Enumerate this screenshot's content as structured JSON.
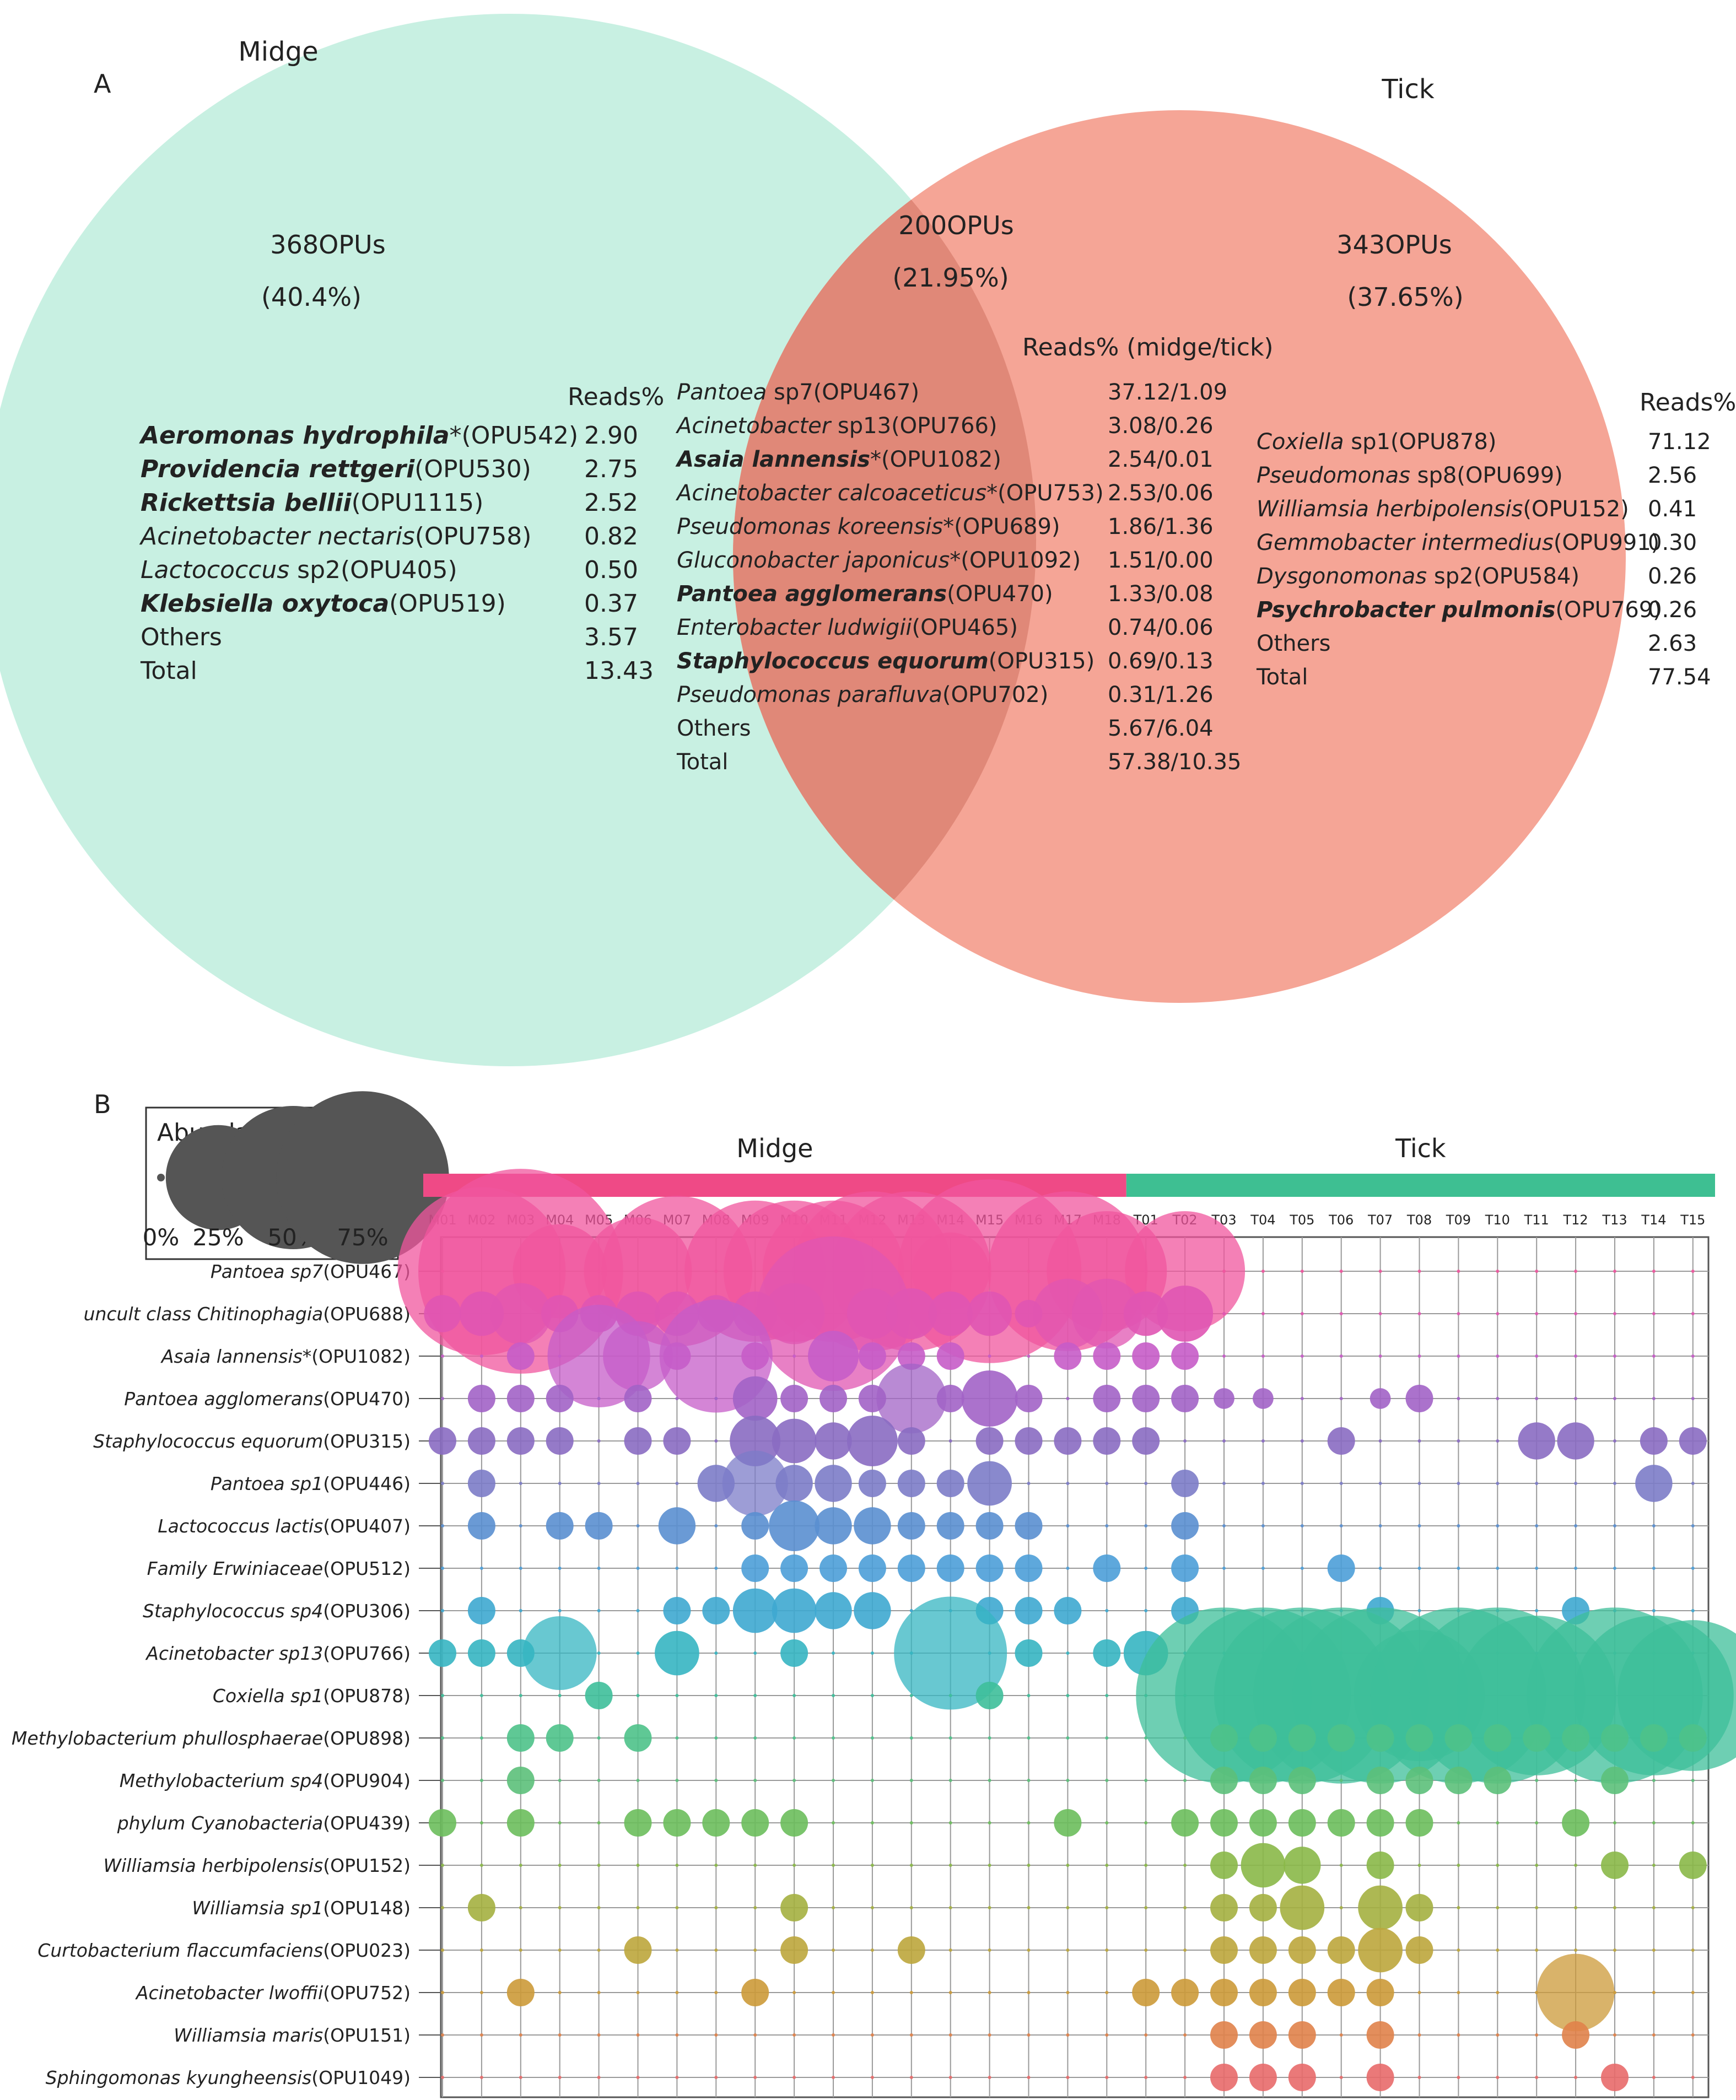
{
  "panelA": {
    "label": "A",
    "midge": {
      "name": "Midge",
      "color": "#c8f0e2",
      "count": "368OPUs",
      "percent": "(40.4%)",
      "reads_header": "Reads%",
      "rows": [
        {
          "name": "Aeromonas hydrophila",
          "bold": true,
          "suffix": "*(OPU542)",
          "value": "2.90"
        },
        {
          "name": "Providencia rettgeri",
          "bold": true,
          "suffix": "(OPU530)",
          "value": "2.75"
        },
        {
          "name": "Rickettsia bellii",
          "bold": true,
          "suffix": "(OPU1115)",
          "value": "2.52"
        },
        {
          "name": "Acinetobacter nectaris",
          "bold": false,
          "suffix": "(OPU758)",
          "value": "0.82"
        },
        {
          "name": "Lactococcus",
          "bold": false,
          "suffix": " sp2(OPU405)",
          "value": "0.50"
        },
        {
          "name": "Klebsiella oxytoca",
          "bold": true,
          "suffix": "(OPU519)",
          "value": "0.37"
        },
        {
          "name": "",
          "bold": false,
          "suffix": "Others",
          "value": "3.57"
        },
        {
          "name": "",
          "bold": false,
          "suffix": "Total",
          "value": "13.43"
        }
      ]
    },
    "shared": {
      "color": "#e08878",
      "count": "200OPUs",
      "percent": "(21.95%)",
      "reads_header": "Reads% (midge/tick)",
      "rows": [
        {
          "name": "Pantoea",
          "bold": false,
          "suffix": " sp7(OPU467)",
          "value": "37.12/1.09"
        },
        {
          "name": "Acinetobacter",
          "bold": false,
          "suffix": " sp13(OPU766)",
          "value": "3.08/0.26"
        },
        {
          "name": "Asaia lannensis",
          "bold": true,
          "suffix": "*(OPU1082)",
          "value": "2.54/0.01"
        },
        {
          "name": "Acinetobacter calcoaceticus",
          "bold": false,
          "suffix": "*(OPU753)",
          "value": "2.53/0.06"
        },
        {
          "name": "Pseudomonas koreensis",
          "bold": false,
          "suffix": "*(OPU689)",
          "value": "1.86/1.36"
        },
        {
          "name": "Gluconobacter japonicus",
          "bold": false,
          "suffix": "*(OPU1092)",
          "value": "1.51/0.00"
        },
        {
          "name": "Pantoea agglomerans",
          "bold": true,
          "suffix": "(OPU470)",
          "value": "1.33/0.08"
        },
        {
          "name": "Enterobacter ludwigii",
          "bold": false,
          "suffix": "(OPU465)",
          "value": "0.74/0.06"
        },
        {
          "name": "Staphylococcus equorum",
          "bold": true,
          "suffix": "(OPU315)",
          "value": "0.69/0.13"
        },
        {
          "name": "Pseudomonas parafluva",
          "bold": false,
          "suffix": "(OPU702)",
          "value": "0.31/1.26"
        },
        {
          "name": "",
          "bold": false,
          "suffix": "Others",
          "value": "5.67/6.04"
        },
        {
          "name": "",
          "bold": false,
          "suffix": "Total",
          "value": "57.38/10.35"
        }
      ]
    },
    "tick": {
      "name": "Tick",
      "color": "#f5a596",
      "count": "343OPUs",
      "percent": "(37.65%)",
      "reads_header": "Reads%",
      "rows": [
        {
          "name": "Coxiella",
          "bold": false,
          "suffix": " sp1(OPU878)",
          "value": "71.12"
        },
        {
          "name": "Pseudomonas",
          "bold": false,
          "suffix": " sp8(OPU699)",
          "value": "2.56"
        },
        {
          "name": "Williamsia herbipolensis",
          "bold": false,
          "suffix": "(OPU152)",
          "value": "0.41"
        },
        {
          "name": "Gemmobacter intermedius",
          "bold": false,
          "suffix": "(OPU991)",
          "value": "0.30"
        },
        {
          "name": "Dysgonomonas",
          "bold": false,
          "suffix": " sp2(OPU584)",
          "value": "0.26"
        },
        {
          "name": "Psychrobacter pulmonis",
          "bold": true,
          "suffix": "(OPU769)",
          "value": "0.26"
        },
        {
          "name": "",
          "bold": false,
          "suffix": "Others",
          "value": "2.63"
        },
        {
          "name": "",
          "bold": false,
          "suffix": "Total",
          "value": "77.54"
        }
      ]
    }
  },
  "panelB": {
    "label": "B",
    "legend": {
      "title": "Abundance",
      "sizes": [
        0,
        25,
        50,
        75
      ],
      "labels": [
        "0%",
        "25%",
        "50%",
        "75%"
      ],
      "color": "#555555"
    },
    "groups": [
      {
        "name": "Midge",
        "color": "#ef4a86"
      },
      {
        "name": "Tick",
        "color": "#3ebf92"
      }
    ]
  },
  "chart_data": {
    "type": "scatter",
    "samples": [
      "M01",
      "M02",
      "M03",
      "M04",
      "M05",
      "M06",
      "M07",
      "M08",
      "M09",
      "M10",
      "M11",
      "M12",
      "M13",
      "M14",
      "M15",
      "M16",
      "M17",
      "M18",
      "T01",
      "T02",
      "T03",
      "T04",
      "T05",
      "T06",
      "T07",
      "T08",
      "T09",
      "T10",
      "T11",
      "T12",
      "T13",
      "T14",
      "T15"
    ],
    "group_of_sample": [
      "Midge",
      "Midge",
      "Midge",
      "Midge",
      "Midge",
      "Midge",
      "Midge",
      "Midge",
      "Midge",
      "Midge",
      "Midge",
      "Midge",
      "Midge",
      "Midge",
      "Midge",
      "Midge",
      "Midge",
      "Midge",
      "Tick",
      "Tick",
      "Tick",
      "Tick",
      "Tick",
      "Tick",
      "Tick",
      "Tick",
      "Tick",
      "Tick",
      "Tick",
      "Tick",
      "Tick",
      "Tick",
      "Tick"
    ],
    "taxa": [
      {
        "name": "Pantoea sp7",
        "suffix": "(OPU467)",
        "color": "#f0559e",
        "values": [
          0,
          50,
          75,
          15,
          0,
          20,
          40,
          0,
          35,
          35,
          35,
          45,
          45,
          10,
          60,
          0,
          45,
          25,
          0,
          25,
          0,
          0,
          0,
          0,
          0,
          0,
          0,
          0,
          0,
          0,
          0,
          0,
          0
        ]
      },
      {
        "name": "uncult class Chitinophagia",
        "suffix": "(OPU688)",
        "color": "#e055b2",
        "values": [
          2,
          3,
          6,
          2,
          2,
          3,
          3,
          2,
          3,
          6,
          42,
          4,
          4,
          3,
          3,
          1,
          8,
          8,
          3,
          5,
          0,
          0,
          0,
          0,
          0,
          0,
          0,
          0,
          0,
          0,
          0,
          0,
          0
        ]
      },
      {
        "name": "Asaia lannensis",
        "suffix": "*(OPU1082)",
        "color": "#c65cc8",
        "values": [
          0,
          0,
          1,
          0,
          18,
          8,
          1,
          22,
          1,
          0,
          4,
          1,
          1,
          1,
          0,
          0,
          1,
          1,
          1,
          1,
          0,
          0,
          0,
          0,
          0,
          0,
          0,
          0,
          0,
          0,
          0,
          0,
          0
        ]
      },
      {
        "name": "Pantoea agglomerans",
        "suffix": "(OPU470)",
        "color": "#a263c6",
        "values": [
          0,
          1,
          1,
          1,
          0,
          1,
          0,
          0,
          3,
          1,
          1,
          1,
          8,
          1,
          5,
          1,
          0,
          1,
          1,
          1,
          0.5,
          0.5,
          0,
          0,
          0.5,
          1,
          0,
          0,
          0,
          0,
          0,
          0,
          0
        ]
      },
      {
        "name": "Staphylococcus equorum",
        "suffix": "(OPU315)",
        "color": "#8a6cc2",
        "values": [
          1,
          1,
          1,
          1,
          0,
          1,
          1,
          0,
          4,
          3,
          2,
          4,
          1,
          0,
          1,
          1,
          1,
          1,
          1,
          0,
          0,
          0,
          0,
          1,
          0,
          0,
          0,
          0,
          2,
          2,
          0,
          1,
          1
        ]
      },
      {
        "name": "Pantoea sp1",
        "suffix": "(OPU446)",
        "color": "#7c7cc8",
        "values": [
          0,
          1,
          0,
          0,
          0,
          0,
          0,
          2,
          7,
          2,
          2,
          1,
          1,
          1,
          3,
          0,
          0,
          0,
          0,
          1,
          0,
          0,
          0,
          0,
          0,
          0,
          0,
          0,
          0,
          0,
          0,
          2,
          0
        ]
      },
      {
        "name": "Lactococcus lactis",
        "suffix": "(OPU407)",
        "color": "#5a8fd0",
        "values": [
          0,
          1,
          0,
          1,
          1,
          0,
          2,
          0,
          1,
          4,
          2,
          2,
          1,
          1,
          1,
          1,
          0,
          0,
          0,
          1,
          0,
          0,
          0,
          0,
          0,
          0,
          0,
          0,
          0,
          0,
          0,
          0,
          0
        ]
      },
      {
        "name": "Family Erwiniaceae",
        "suffix": "(OPU512)",
        "color": "#4c9fd8",
        "values": [
          0,
          0,
          0,
          0,
          0,
          0,
          0,
          0,
          1,
          1,
          1,
          1,
          1,
          1,
          1,
          1,
          0,
          1,
          0,
          1,
          0,
          0,
          0,
          1,
          0,
          0,
          0,
          0,
          0,
          0,
          0,
          0,
          0
        ]
      },
      {
        "name": "Staphylococcus sp4",
        "suffix": "(OPU306)",
        "color": "#3ea8d0",
        "values": [
          0,
          1,
          0,
          0,
          0,
          0,
          1,
          1,
          3,
          3,
          2,
          2,
          0,
          0,
          1,
          1,
          1,
          0,
          0,
          1,
          0,
          0,
          0,
          0,
          1,
          0,
          0,
          0,
          0,
          1,
          0,
          0,
          0
        ]
      },
      {
        "name": "Acinetobacter sp13",
        "suffix": "(OPU766)",
        "color": "#36b5c2",
        "values": [
          1,
          1,
          1,
          9,
          0,
          0,
          3,
          0,
          0,
          1,
          0,
          0,
          0,
          22,
          0,
          1,
          0,
          1,
          3,
          0,
          0,
          0,
          0,
          0,
          0,
          0,
          0,
          0,
          0,
          0,
          0,
          0,
          0
        ]
      },
      {
        "name": "Coxiella sp1",
        "suffix": "(OPU878)",
        "color": "#3ebf9a",
        "values": [
          0,
          0,
          0,
          0,
          1,
          0,
          0,
          0,
          0,
          0,
          0,
          0,
          0,
          0,
          1,
          0,
          0,
          0,
          0,
          0,
          55,
          55,
          55,
          55,
          55,
          30,
          55,
          55,
          45,
          0,
          55,
          45,
          40
        ]
      },
      {
        "name": "Methylobacterium phullosphaerae",
        "suffix": "(OPU898)",
        "color": "#4ec28a",
        "values": [
          0,
          0,
          1,
          1,
          0,
          1,
          0,
          0,
          0,
          0,
          0,
          0,
          0,
          0,
          0,
          0,
          0,
          0,
          0,
          0,
          1,
          1,
          1,
          1,
          1,
          1,
          1,
          1,
          1,
          1,
          1,
          1,
          1
        ]
      },
      {
        "name": "Methylobacterium sp4",
        "suffix": "(OPU904)",
        "color": "#5cc07a",
        "values": [
          0,
          0,
          1,
          0,
          0,
          0,
          0,
          0,
          0,
          0,
          0,
          0,
          0,
          0,
          0,
          0,
          0,
          0,
          0,
          0,
          1,
          1,
          1,
          0,
          1,
          1,
          1,
          1,
          0,
          0,
          1,
          0,
          0
        ]
      },
      {
        "name": "phylum Cyanobacteria",
        "suffix": "(OPU439)",
        "color": "#6cbe5c",
        "values": [
          1,
          0,
          1,
          0,
          0,
          1,
          1,
          1,
          1,
          1,
          0,
          0,
          0,
          0,
          0,
          0,
          1,
          0,
          0,
          1,
          1,
          1,
          1,
          1,
          1,
          1,
          0,
          0,
          0,
          1,
          0,
          0,
          0
        ]
      },
      {
        "name": "Williamsia herbipolensis",
        "suffix": "(OPU152)",
        "color": "#8ab848",
        "values": [
          0,
          0,
          0,
          0,
          0,
          0,
          0,
          0,
          0,
          0,
          0,
          0,
          0,
          0,
          0,
          0,
          0,
          0,
          0,
          0,
          1,
          3,
          2,
          0,
          1,
          0,
          0,
          0,
          0,
          0,
          1,
          0,
          1
        ]
      },
      {
        "name": "Williamsia sp1",
        "suffix": "(OPU148)",
        "color": "#a4b040",
        "values": [
          0,
          1,
          0,
          0,
          0,
          0,
          0,
          0,
          0,
          1,
          0,
          0,
          0,
          0,
          0,
          0,
          0,
          0,
          0,
          0,
          1,
          1,
          3,
          0,
          3,
          1,
          0,
          0,
          0,
          0,
          0,
          0,
          0
        ]
      },
      {
        "name": "Curtobacterium flaccumfaciens",
        "suffix": "(OPU023)",
        "color": "#bca63c",
        "values": [
          0,
          0,
          0,
          0,
          0,
          1,
          0,
          0,
          0,
          1,
          0,
          0,
          1,
          0,
          0,
          0,
          0,
          0,
          0,
          0,
          1,
          1,
          1,
          1,
          3,
          1,
          0,
          0,
          0,
          0,
          0,
          0,
          0
        ]
      },
      {
        "name": "Acinetobacter lwoffii",
        "suffix": "(OPU752)",
        "color": "#cc9a38",
        "values": [
          0,
          0,
          1,
          0,
          0,
          0,
          0,
          0,
          1,
          0,
          0,
          0,
          0,
          0,
          0,
          0,
          0,
          0,
          1,
          1,
          1,
          1,
          1,
          1,
          1,
          0,
          0,
          0,
          0,
          10,
          0,
          0,
          0
        ]
      },
      {
        "name": "Williamsia maris",
        "suffix": "(OPU151)",
        "color": "#e0824a",
        "values": [
          0,
          0,
          0,
          0,
          0,
          0,
          0,
          0,
          0,
          0,
          0,
          0,
          0,
          0,
          0,
          0,
          0,
          0,
          0,
          0,
          1,
          1,
          1,
          0,
          1,
          0,
          0,
          0,
          0,
          1,
          0,
          0,
          0
        ]
      },
      {
        "name": "Sphingomonas kyungheensis",
        "suffix": "(OPU1049)",
        "color": "#e86a6a",
        "values": [
          0,
          0,
          0,
          0,
          0,
          0,
          0,
          0,
          0,
          0,
          0,
          0,
          0,
          0,
          0,
          0,
          0,
          0,
          0,
          0,
          1,
          1,
          1,
          0,
          1,
          0,
          0,
          0,
          0,
          0,
          1,
          0,
          0
        ]
      }
    ]
  }
}
